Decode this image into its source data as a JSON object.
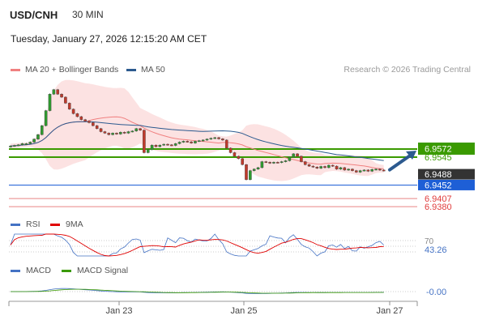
{
  "header": {
    "symbol": "USD/CNH",
    "timeframe": "30 MIN",
    "datetime": "Tuesday, January 27, 2026 12:15:20 AM CET",
    "credit": "Research © 2026 Trading Central"
  },
  "legend_main": [
    {
      "label": "MA 20 + Bollinger Bands",
      "color": "#f08080"
    },
    {
      "label": "MA 50",
      "color": "#2c5a8f"
    }
  ],
  "legend_rsi": [
    {
      "label": "RSI",
      "color": "#4472c4"
    },
    {
      "label": "9MA",
      "color": "#e00000"
    }
  ],
  "legend_macd": [
    {
      "label": "MACD",
      "color": "#4472c4"
    },
    {
      "label": "MACD Signal",
      "color": "#3a9a00"
    }
  ],
  "chart_data": {
    "type": "candlestick",
    "x_ticks": [
      "Jan 23",
      "Jan 25",
      "Jan 27"
    ],
    "price_levels": [
      {
        "label": "6.9572",
        "value": 6.9572,
        "style": "resistance-filled",
        "color": "#3a9a00"
      },
      {
        "label": "6.9545",
        "value": 6.9545,
        "style": "resistance",
        "color": "#3a9a00"
      },
      {
        "label": "6.9488",
        "value": 6.9488,
        "style": "current",
        "color": "#333333"
      },
      {
        "label": "6.9452",
        "value": 6.9452,
        "style": "pivot",
        "color": "#1e5fd6"
      },
      {
        "label": "6.9407",
        "value": 6.9407,
        "style": "support",
        "color": "#e05050"
      },
      {
        "label": "6.9380",
        "value": 6.938,
        "style": "support",
        "color": "#e05050"
      }
    ],
    "arrow_direction": "up",
    "candles_close": [
      6.9582,
      6.9584,
      6.9586,
      6.959,
      6.959,
      6.9595,
      6.9605,
      6.962,
      6.965,
      6.97,
      6.9755,
      6.977,
      6.9755,
      6.9745,
      6.9725,
      6.9705,
      6.969,
      6.968,
      6.967,
      6.9665,
      6.966,
      6.965,
      6.964,
      6.963,
      6.9625,
      6.962,
      6.9625,
      6.9622,
      6.9628,
      6.9625,
      6.963,
      6.9632,
      6.964,
      6.9635,
      6.956,
      6.957,
      6.9585,
      6.958,
      6.9585,
      6.9588,
      6.9586,
      6.9584,
      6.959,
      6.9595,
      6.9598,
      6.9596,
      6.9592,
      6.9598,
      6.96,
      6.9602,
      6.9605,
      6.9608,
      6.961,
      6.9606,
      6.9602,
      6.9575,
      6.956,
      6.9548,
      6.954,
      6.952,
      6.947,
      6.95,
      6.9505,
      6.951,
      6.953,
      6.9528,
      6.9525,
      6.9528,
      6.9527,
      6.953,
      6.9533,
      6.9545,
      6.9556,
      6.9548,
      6.953,
      6.952,
      6.9515,
      6.9512,
      6.9508,
      6.9514,
      6.951,
      6.9518,
      6.9515,
      6.9505,
      6.951,
      6.9502,
      6.9505,
      6.95,
      6.9495,
      6.95,
      6.9502,
      6.9498,
      6.9504,
      6.9505,
      6.9502,
      6.95
    ],
    "rsi": {
      "level": 70,
      "value": 43.26
    },
    "macd": {
      "value": "-0.00"
    }
  }
}
